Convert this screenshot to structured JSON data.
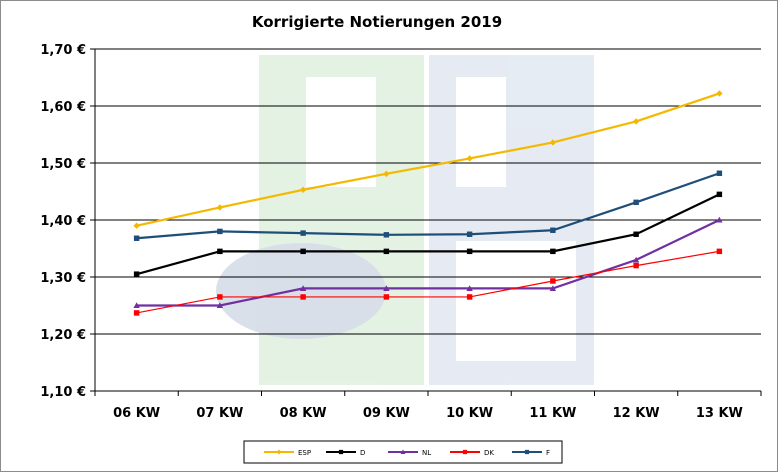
{
  "chart_data": {
    "type": "line",
    "title": "Korrigierte Notierungen 2019",
    "xlabel": "",
    "ylabel": "",
    "categories": [
      "06 KW",
      "07 KW",
      "08 KW",
      "09 KW",
      "10 KW",
      "11 KW",
      "12 KW",
      "13 KW"
    ],
    "yticks": [
      "1,10 €",
      "1,20 €",
      "1,30 €",
      "1,40 €",
      "1,50 €",
      "1,60 €",
      "1,70 €"
    ],
    "ylim": [
      1.1,
      1.7
    ],
    "grid": true,
    "legend_position": "bottom",
    "series": [
      {
        "name": "ESP",
        "color": "#f5b800",
        "marker": "diamond",
        "values": [
          1.39,
          1.422,
          1.453,
          1.481,
          1.508,
          1.536,
          1.573,
          1.622
        ]
      },
      {
        "name": "D",
        "color": "#000000",
        "marker": "square",
        "values": [
          1.305,
          1.345,
          1.345,
          1.345,
          1.345,
          1.345,
          1.375,
          1.445
        ]
      },
      {
        "name": "NL",
        "color": "#7030a0",
        "marker": "triangle",
        "values": [
          1.25,
          1.25,
          1.28,
          1.28,
          1.28,
          1.28,
          1.33,
          1.4
        ]
      },
      {
        "name": "DK",
        "color": "#ff0000",
        "marker": "square",
        "values": [
          1.237,
          1.265,
          1.265,
          1.265,
          1.265,
          1.293,
          1.32,
          1.345
        ]
      },
      {
        "name": "F",
        "color": "#1f4e79",
        "marker": "square",
        "values": [
          1.368,
          1.38,
          1.377,
          1.374,
          1.375,
          1.382,
          1.431,
          1.482
        ]
      }
    ]
  }
}
